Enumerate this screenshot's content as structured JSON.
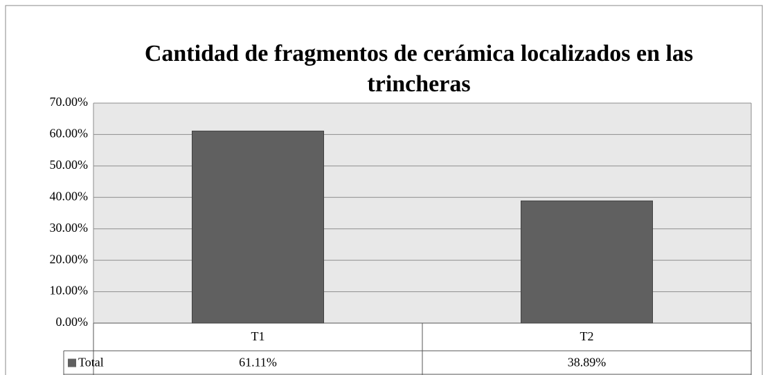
{
  "chart_data": {
    "type": "bar",
    "title": "Cantidad de fragmentos de cerámica localizados en las trincheras",
    "categories": [
      "T1",
      "T2"
    ],
    "series": [
      {
        "name": "Total",
        "color": "#606060",
        "values": [
          61.11,
          38.89
        ],
        "value_labels": [
          "61.11%",
          "38.89%"
        ]
      }
    ],
    "ylim": [
      0,
      70
    ],
    "yticks": [
      {
        "value": 0,
        "label": "0.00%"
      },
      {
        "value": 10,
        "label": "10.00%"
      },
      {
        "value": 20,
        "label": "20.00%"
      },
      {
        "value": 30,
        "label": "30.00%"
      },
      {
        "value": 40,
        "label": "40.00%"
      },
      {
        "value": 50,
        "label": "50.00%"
      },
      {
        "value": 60,
        "label": "60.00%"
      },
      {
        "value": 70,
        "label": "70.00%"
      }
    ],
    "grid": true
  }
}
